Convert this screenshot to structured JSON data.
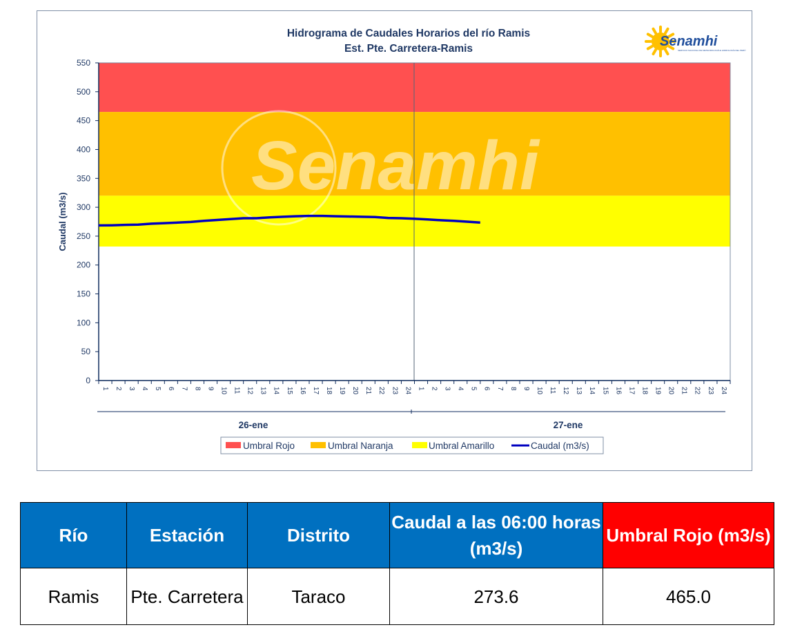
{
  "chart_data": {
    "type": "line",
    "title": "Hidrograma de Caudales Horarios del río Ramis",
    "subtitle": "Est. Pte. Carretera-Ramis",
    "ylabel": "Caudal  (m3/s)",
    "ylim": [
      0,
      550
    ],
    "yticks": [
      0,
      50,
      100,
      150,
      200,
      250,
      300,
      350,
      400,
      450,
      500,
      550
    ],
    "x_hours": [
      "1",
      "2",
      "3",
      "4",
      "5",
      "6",
      "7",
      "8",
      "9",
      "10",
      "11",
      "12",
      "13",
      "14",
      "15",
      "16",
      "17",
      "18",
      "19",
      "20",
      "21",
      "22",
      "23",
      "24",
      "1",
      "2",
      "3",
      "4",
      "5",
      "6",
      "7",
      "8",
      "9",
      "10",
      "11",
      "12",
      "13",
      "14",
      "15",
      "16",
      "17",
      "18",
      "19",
      "20",
      "21",
      "22",
      "23",
      "24"
    ],
    "day_groups": [
      "26-ene",
      "27-ene"
    ],
    "threshold_bands": [
      {
        "name": "Umbral Rojo",
        "from": 465,
        "to": 550,
        "color": "#ff5050"
      },
      {
        "name": "Umbral Naranja",
        "from": 320,
        "to": 465,
        "color": "#ffc000"
      },
      {
        "name": "Umbral Amarillo",
        "from": 232,
        "to": 320,
        "color": "#ffff00"
      }
    ],
    "series": [
      {
        "name": "Caudal (m3/s)",
        "color": "#0000c0",
        "values": [
          268.5,
          268.8,
          269.5,
          269.8,
          271.5,
          272.5,
          273.5,
          274.5,
          276.5,
          278.0,
          279.5,
          281.0,
          281.0,
          282.5,
          283.5,
          284.5,
          285.0,
          285.0,
          284.5,
          284.0,
          283.5,
          283.0,
          281.5,
          281.0,
          280.0,
          279.0,
          277.5,
          276.5,
          275.0,
          273.6
        ]
      }
    ],
    "legend": {
      "position": "bottom",
      "items": [
        "Umbral Rojo",
        "Umbral Naranja",
        "Umbral Amarillo",
        "Caudal (m3/s)"
      ]
    },
    "watermark": "Senamhi"
  },
  "logo": {
    "text": "Senamhi",
    "small_text": "SERVICIO NACIONAL DE METEOROLOGÍA E HIDROLOGÍA DEL PERÚ"
  },
  "table": {
    "headers": [
      "Río",
      "Estación",
      "Distrito",
      "Caudal a las 06:00 horas (m3/s)",
      "Umbral Rojo (m3/s)"
    ],
    "row": [
      "Ramis",
      "Pte. Carretera",
      "Taraco",
      "273.6",
      "465.0"
    ]
  }
}
